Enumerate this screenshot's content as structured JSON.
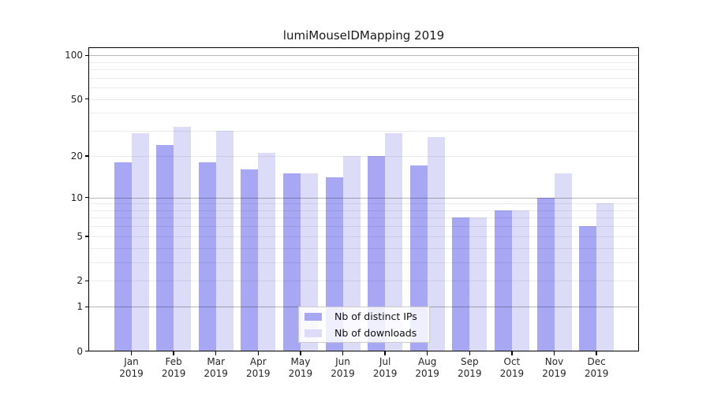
{
  "chart_data": {
    "type": "bar",
    "title": "lumiMouseIDMapping 2019",
    "categories": [
      "Jan",
      "Feb",
      "Mar",
      "Apr",
      "May",
      "Jun",
      "Jul",
      "Aug",
      "Sep",
      "Oct",
      "Nov",
      "Dec"
    ],
    "year_label": "2019",
    "series": [
      {
        "name": "Nb of distinct IPs",
        "color": "#a7a7f4",
        "values": [
          18,
          24,
          18,
          16,
          15,
          14,
          20,
          17,
          7,
          8,
          10,
          6
        ]
      },
      {
        "name": "Nb of downloads",
        "color": "#dcdcf9",
        "values": [
          29,
          32,
          30,
          21,
          15,
          20,
          29,
          27,
          7,
          8,
          15,
          9
        ]
      }
    ],
    "y_axis": {
      "scale": "log1p",
      "tick_labels": [
        0,
        1,
        2,
        5,
        10,
        20,
        50,
        100
      ],
      "major_gridlines": [
        1,
        10,
        100
      ],
      "minor_gridlines": [
        2,
        3,
        4,
        5,
        6,
        7,
        8,
        9,
        20,
        30,
        40,
        50,
        60,
        70,
        80,
        90
      ],
      "range": [
        0,
        113
      ]
    },
    "legend_position": "bottom-center-inside",
    "grid": true
  }
}
